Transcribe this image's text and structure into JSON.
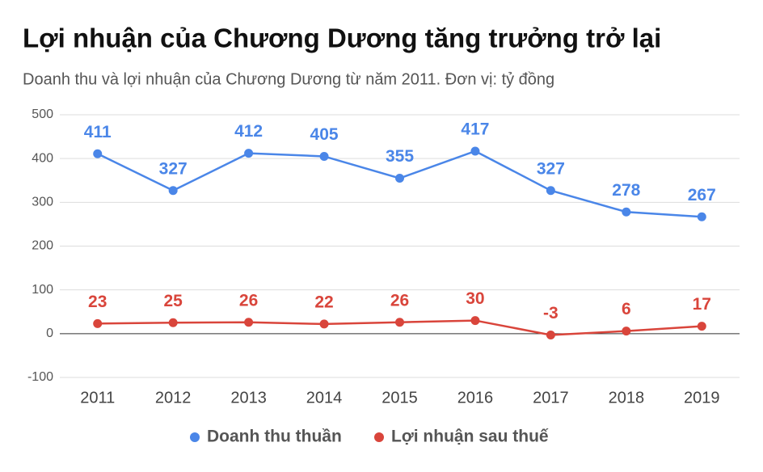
{
  "chart_data": {
    "type": "line",
    "title": "Lợi nhuận của Chương Dương tăng trưởng trở lại",
    "subtitle": "Doanh thu và lợi nhuận của Chương Dương từ năm 2011. Đơn vị: tỷ đồng",
    "categories": [
      "2011",
      "2012",
      "2013",
      "2014",
      "2015",
      "2016",
      "2017",
      "2018",
      "2019"
    ],
    "series": [
      {
        "name": "Doanh thu thuần",
        "color": "#4a86e8",
        "values": [
          411,
          327,
          412,
          405,
          355,
          417,
          327,
          278,
          267
        ]
      },
      {
        "name": "Lợi nhuận sau thuế",
        "color": "#d9453b",
        "values": [
          23,
          25,
          26,
          22,
          26,
          30,
          -3,
          6,
          17
        ]
      }
    ],
    "ylim": [
      -100,
      500
    ],
    "yticks": [
      -100,
      0,
      100,
      200,
      300,
      400,
      500
    ],
    "grid": true
  }
}
